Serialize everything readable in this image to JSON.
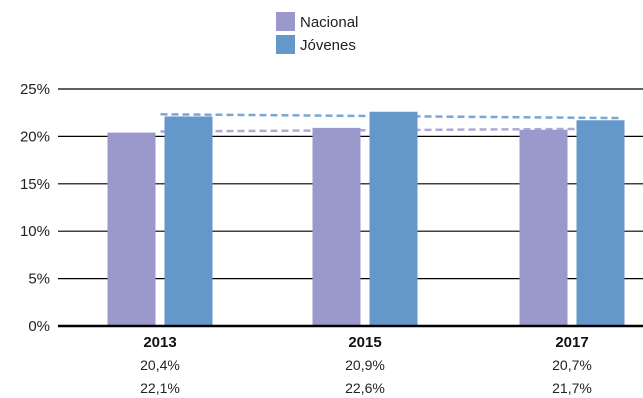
{
  "chart_data": {
    "type": "bar",
    "categories": [
      "2013",
      "2015",
      "2017"
    ],
    "series": [
      {
        "name": "Nacional",
        "values": [
          20.4,
          20.9,
          20.7
        ],
        "labels": [
          "20,4%",
          "20,9%",
          "20,7%"
        ],
        "color": "#9b99cc"
      },
      {
        "name": "Jóvenes",
        "values": [
          22.1,
          22.6,
          21.7
        ],
        "labels": [
          "22,1%",
          "22,6%",
          "21,7%"
        ],
        "color": "#6497ca"
      }
    ],
    "trendlines": [
      {
        "series": "Nacional",
        "style": "dashed",
        "color": "#aba9d6"
      },
      {
        "series": "Jóvenes",
        "style": "dashed",
        "color": "#7aa8d6"
      }
    ],
    "ylim": [
      0,
      25
    ],
    "yticks": [
      0,
      5,
      10,
      15,
      20,
      25
    ],
    "ytick_labels": [
      "0%",
      "5%",
      "10%",
      "15%",
      "20%",
      "25%"
    ],
    "grid": true,
    "legend_position": "top-center"
  }
}
